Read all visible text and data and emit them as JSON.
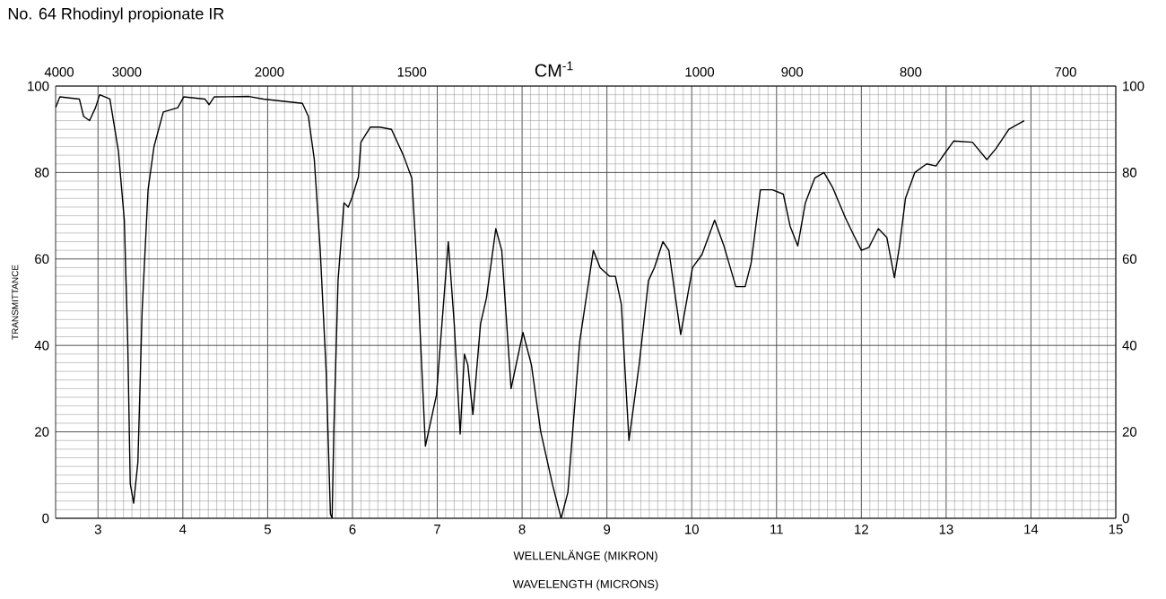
{
  "chart_data": {
    "type": "line",
    "title": "No. 64 Rhodinyl propionate IR",
    "xlabel": "WELLENLÄNGE (MIKRON)",
    "ylabel": "TRANSMITTANCE",
    "x2label": "CM$^{-1}$",
    "annotations": [
      "WAVELENGTH (MICRONS)",
      "4000",
      "3000",
      "2000",
      "1500",
      "1000",
      "900",
      "800",
      "700"
    ],
    "xlim": [
      2.5,
      15
    ],
    "xticks": [
      3,
      4,
      5,
      6,
      7,
      8,
      9,
      10,
      11,
      12,
      13,
      14,
      15
    ],
    "ylim": [
      0,
      100
    ],
    "yticks": [
      0,
      20,
      40,
      60,
      80,
      100
    ],
    "y2lim": [
      0,
      100
    ],
    "y2ticks": [
      0,
      20,
      40,
      60,
      80,
      100
    ],
    "grid": true,
    "marker": "none",
    "line_style": "solid",
    "series": [
      {
        "color": "#000000",
        "x": [
          2.5,
          2.55,
          2.78,
          2.83,
          2.9,
          2.97,
          3.02,
          3.14,
          3.24,
          3.31,
          3.35,
          3.38,
          3.42,
          3.47,
          3.52,
          3.59,
          3.66,
          3.77,
          3.94,
          4.01,
          4.26,
          4.31,
          4.37,
          4.78,
          4.95,
          5.41,
          5.48,
          5.55,
          5.62,
          5.69,
          5.74,
          5.76,
          5.78,
          5.83,
          5.9,
          5.95,
          6.0,
          6.07,
          6.1,
          6.21,
          6.32,
          6.46,
          6.6,
          6.7,
          6.77,
          6.86,
          6.99,
          7.13,
          7.2,
          7.27,
          7.32,
          7.36,
          7.42,
          7.51,
          7.58,
          7.69,
          7.76,
          7.87,
          8.01,
          8.11,
          8.22,
          8.36,
          8.46,
          8.54,
          8.68,
          8.84,
          8.92,
          9.03,
          9.1,
          9.17,
          9.26,
          9.38,
          9.49,
          9.56,
          9.66,
          9.73,
          9.87,
          10.01,
          10.12,
          10.27,
          10.38,
          10.52,
          10.63,
          10.7,
          10.81,
          10.95,
          11.08,
          11.16,
          11.25,
          11.34,
          11.45,
          11.56,
          11.66,
          11.81,
          11.91,
          12.0,
          12.09,
          12.2,
          12.3,
          12.39,
          12.45,
          12.52,
          12.63,
          12.77,
          12.88,
          12.95,
          13.09,
          13.31,
          13.48,
          13.59,
          13.74,
          13.92
        ],
        "values": [
          95,
          97.5,
          97,
          93,
          92,
          95,
          98,
          97,
          85,
          69,
          41,
          8,
          3.5,
          13,
          48,
          76,
          86,
          94,
          95,
          97.5,
          97,
          95.7,
          97.5,
          97.6,
          97,
          96,
          93,
          83,
          62,
          34,
          1,
          0,
          20,
          55,
          73,
          72,
          74.5,
          79,
          87,
          90.5,
          90.5,
          90,
          84,
          78.7,
          55,
          16.7,
          28.5,
          64,
          45,
          19.5,
          38,
          35.5,
          24,
          45,
          51,
          67,
          62,
          30,
          43,
          35.5,
          20,
          7.7,
          0,
          6,
          41,
          62,
          58,
          56,
          56,
          49.5,
          18,
          35.5,
          55,
          58,
          64,
          62,
          42.5,
          58,
          61,
          69,
          63,
          53.6,
          53.6,
          59,
          76,
          76,
          75,
          67.6,
          63,
          73,
          78.7,
          80,
          76.6,
          69.6,
          65.5,
          62,
          62.7,
          67,
          65,
          55.7,
          63,
          74,
          80,
          82,
          81.5,
          83.5,
          87.3,
          87,
          83,
          85.6,
          90,
          92
        ]
      }
    ]
  }
}
